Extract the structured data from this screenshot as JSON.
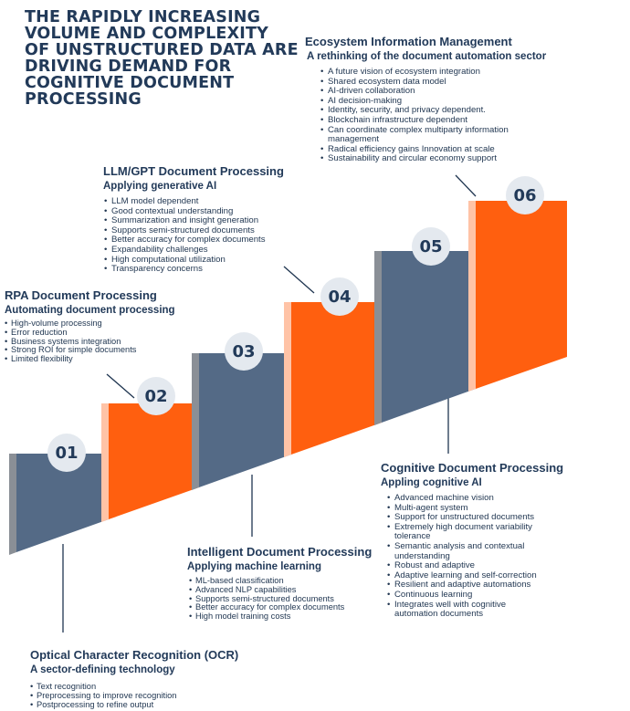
{
  "title": "THE RAPIDLY INCREASING VOLUME AND COMPLEXITY OF UNSTRUCTURED DATA ARE DRIVING DEMAND FOR COGNITIVE DOCUMENT PROCESSING",
  "colors": {
    "navy": "#546a86",
    "orange": "#ff5f0f",
    "text": "#223a59",
    "badge": "#e4e9ef"
  },
  "steps": [
    {
      "number": "01",
      "title": "Optical Character Recognition (OCR)",
      "subtitle": "A sector-defining technology",
      "items": [
        "Text recognition",
        "Preprocessing to improve recognition",
        "Postprocessing to refine output"
      ]
    },
    {
      "number": "02",
      "title": "RPA Document Processing",
      "subtitle": "Automating document processing",
      "items": [
        "High-volume processing",
        "Error reduction",
        "Business systems integration",
        "Strong ROI for simple documents",
        "Limited flexibility"
      ]
    },
    {
      "number": "03",
      "title": "Intelligent Document Processing",
      "subtitle": "Applying machine learning",
      "items": [
        "ML-based classification",
        "Advanced NLP capabilities",
        "Supports semi-structured documents",
        "Better accuracy for complex documents",
        "High model training costs"
      ]
    },
    {
      "number": "04",
      "title": "LLM/GPT Document Processing",
      "subtitle": "Applying generative AI",
      "items": [
        "LLM model dependent",
        "Good contextual understanding",
        "Summarization and insight generation",
        "Supports semi-structured documents",
        "Better accuracy for complex documents",
        "Expandability challenges",
        "High computational utilization",
        "Transparency concerns"
      ]
    },
    {
      "number": "05",
      "title": "Cognitive Document Processing",
      "subtitle": "Appling cognitive AI",
      "items": [
        "Advanced machine vision",
        "Multi-agent system",
        "Support for unstructured documents",
        "Extremely high document variability tolerance",
        "Semantic analysis and contextual understanding",
        "Robust and adaptive",
        "Adaptive learning and self-correction",
        "Resilient and adaptive automations",
        "Continuous learning",
        "Integrates well with cognitive automation documents"
      ]
    },
    {
      "number": "06",
      "title": "Ecosystem Information Management",
      "subtitle": "A rethinking of the document automation sector",
      "items": [
        "A future vision of ecosystem integration",
        "Shared ecosystem data model",
        "AI-driven collaboration",
        "AI decision-making",
        "Identity, security, and privacy dependent.",
        "Blockchain infrastructure dependent",
        "Can coordinate complex multiparty information management",
        "Radical efficiency gains Innovation at scale",
        "Sustainability and circular economy support"
      ]
    }
  ]
}
